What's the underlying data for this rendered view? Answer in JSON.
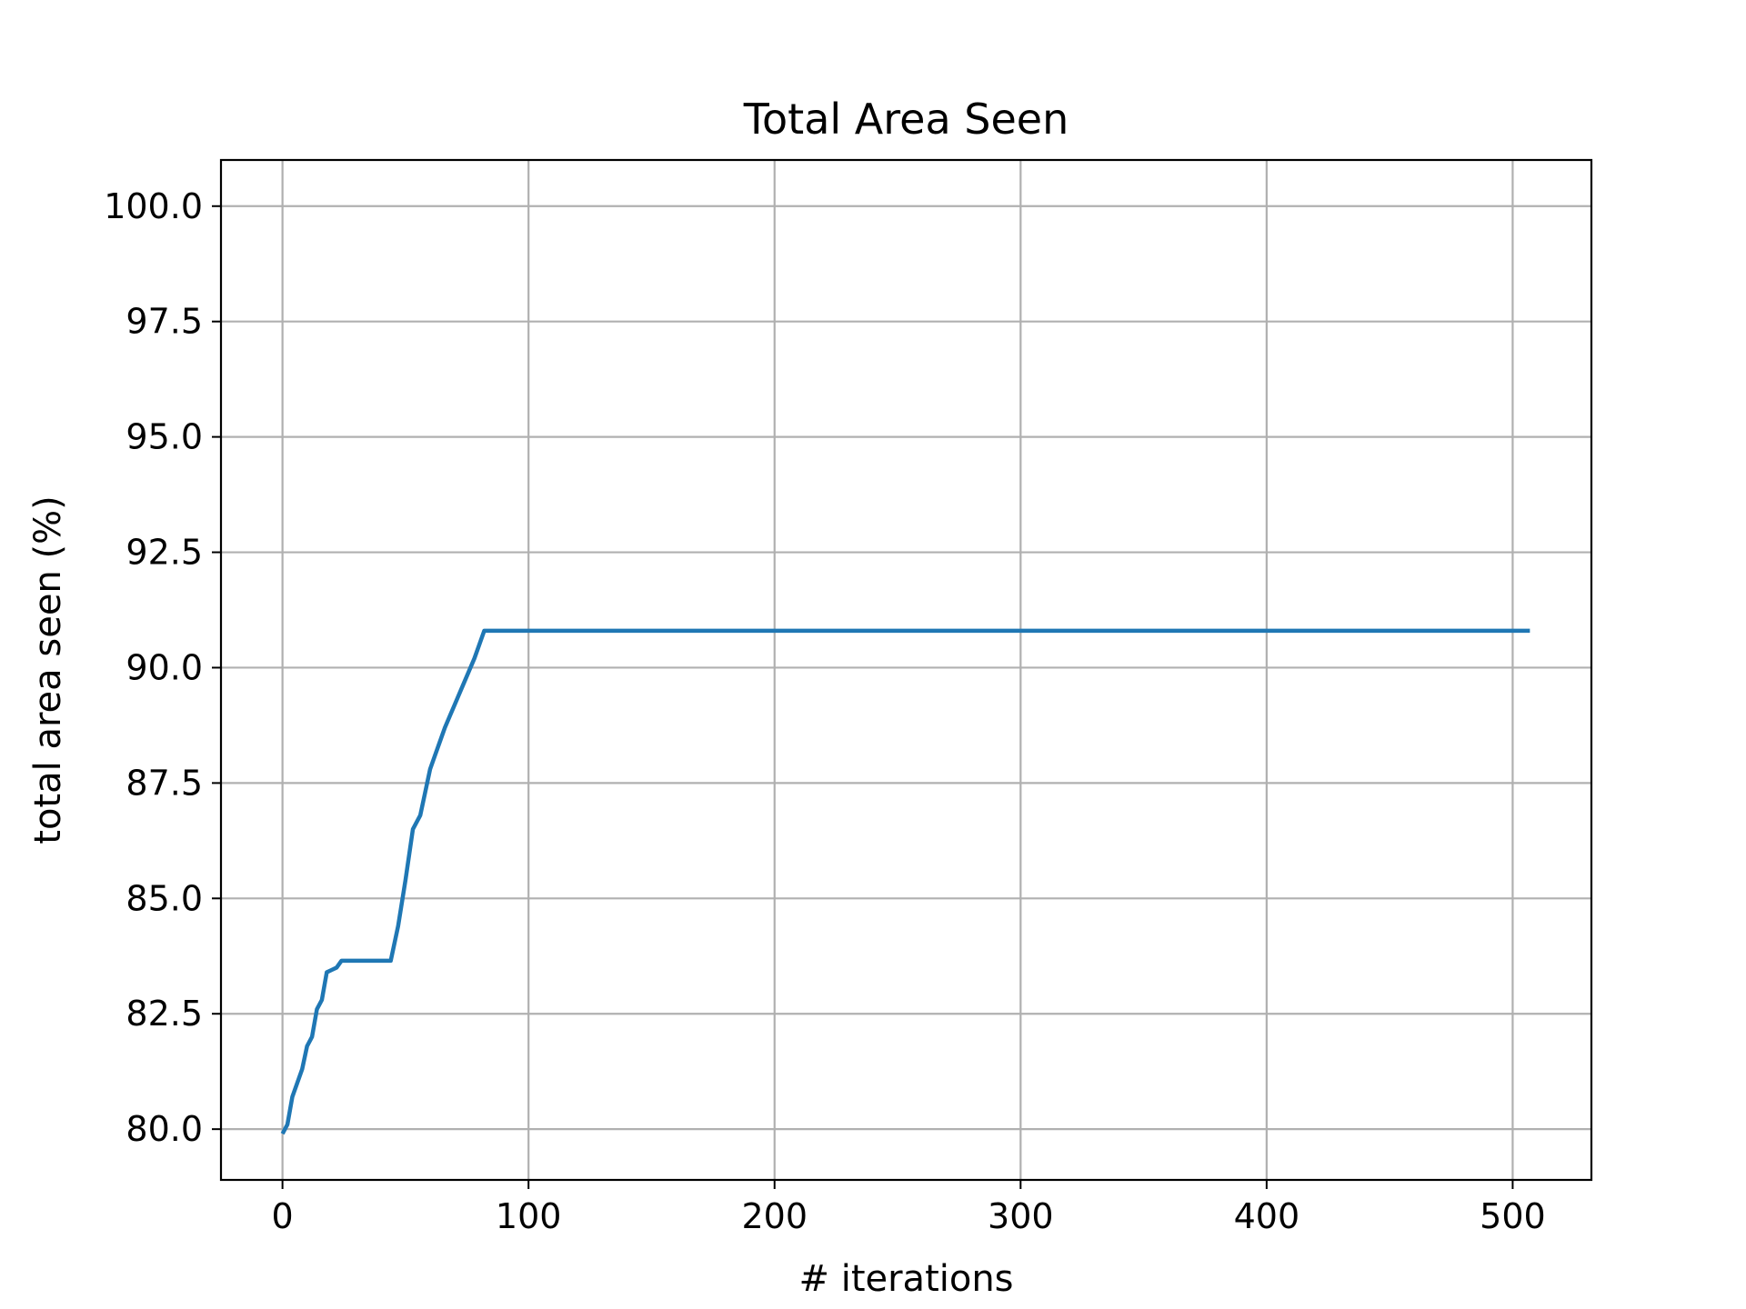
{
  "chart_data": {
    "type": "line",
    "title": "Total Area Seen",
    "xlabel": "# iterations",
    "ylabel": "total area seen (%)",
    "xlim": [
      -25,
      532
    ],
    "ylim": [
      78.9,
      101
    ],
    "grid": true,
    "x_ticks": [
      0,
      100,
      200,
      300,
      400,
      500
    ],
    "x_tick_labels": [
      "0",
      "100",
      "200",
      "300",
      "400",
      "500"
    ],
    "y_ticks": [
      80.0,
      82.5,
      85.0,
      87.5,
      90.0,
      92.5,
      95.0,
      97.5,
      100.0
    ],
    "y_tick_labels": [
      "80.0",
      "82.5",
      "85.0",
      "87.5",
      "90.0",
      "92.5",
      "95.0",
      "97.5",
      "100.0"
    ],
    "series": [
      {
        "name": "total area seen",
        "color": "#1f77b4",
        "x": [
          0,
          2,
          4,
          6,
          8,
          10,
          12,
          14,
          16,
          18,
          20,
          22,
          24,
          25,
          26,
          30,
          35,
          40,
          44,
          47,
          50,
          53,
          56,
          58,
          60,
          62,
          64,
          66,
          68,
          70,
          72,
          74,
          76,
          78,
          80,
          82,
          84,
          100,
          200,
          300,
          400,
          507
        ],
        "y": [
          79.9,
          80.1,
          80.7,
          81.0,
          81.3,
          81.8,
          82.0,
          82.6,
          82.8,
          83.4,
          83.45,
          83.5,
          83.65,
          83.65,
          83.65,
          83.65,
          83.65,
          83.65,
          83.65,
          84.4,
          85.4,
          86.5,
          86.8,
          87.3,
          87.8,
          88.1,
          88.4,
          88.7,
          88.95,
          89.2,
          89.45,
          89.7,
          89.95,
          90.2,
          90.5,
          90.8,
          90.8,
          90.8,
          90.8,
          90.8,
          90.8,
          90.8
        ]
      }
    ]
  }
}
